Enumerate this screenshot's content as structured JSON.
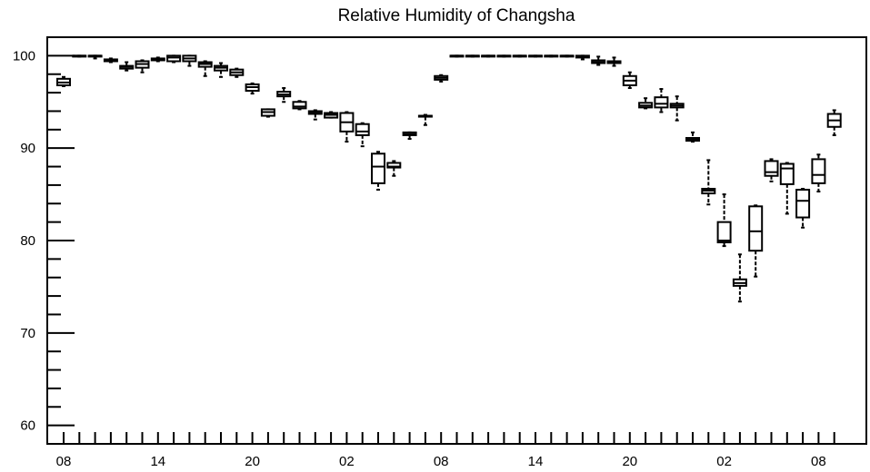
{
  "chart_data": {
    "type": "box",
    "title": "Relative Humidity of Changsha",
    "xlabel": "",
    "ylabel": "",
    "ylim": [
      58,
      102
    ],
    "y_ticks": [
      60,
      70,
      80,
      90,
      100
    ],
    "x_tick_labels": [
      {
        "label": "08",
        "index": 0
      },
      {
        "label": "14",
        "index": 6
      },
      {
        "label": "20",
        "index": 12
      },
      {
        "label": "02",
        "index": 18
      },
      {
        "label": "08",
        "index": 24
      },
      {
        "label": "14",
        "index": 30
      },
      {
        "label": "20",
        "index": 36
      },
      {
        "label": "02",
        "index": 42
      },
      {
        "label": "08",
        "index": 48
      }
    ],
    "grid": false,
    "boxes": [
      {
        "index": 0,
        "min": 96.7,
        "q1": 96.8,
        "median": 97.1,
        "q3": 97.5,
        "max": 97.7
      },
      {
        "index": 1,
        "min": 99.9,
        "q1": 99.9,
        "median": 100.0,
        "q3": 100.0,
        "max": 100.0
      },
      {
        "index": 2,
        "min": 99.7,
        "q1": 99.9,
        "median": 100.0,
        "q3": 100.0,
        "max": 100.0
      },
      {
        "index": 3,
        "min": 99.3,
        "q1": 99.4,
        "median": 99.5,
        "q3": 99.6,
        "max": 99.7
      },
      {
        "index": 4,
        "min": 98.4,
        "q1": 98.6,
        "median": 98.8,
        "q3": 98.9,
        "max": 99.3
      },
      {
        "index": 5,
        "min": 98.2,
        "q1": 98.7,
        "median": 99.1,
        "q3": 99.4,
        "max": 99.5
      },
      {
        "index": 6,
        "min": 99.4,
        "q1": 99.5,
        "median": 99.6,
        "q3": 99.7,
        "max": 99.8
      },
      {
        "index": 7,
        "min": 99.3,
        "q1": 99.4,
        "median": 99.8,
        "q3": 100.0,
        "max": 100.0
      },
      {
        "index": 8,
        "min": 98.9,
        "q1": 99.4,
        "median": 99.7,
        "q3": 100.0,
        "max": 100.0
      },
      {
        "index": 9,
        "min": 97.8,
        "q1": 98.8,
        "median": 99.1,
        "q3": 99.3,
        "max": 99.4
      },
      {
        "index": 10,
        "min": 97.7,
        "q1": 98.4,
        "median": 98.7,
        "q3": 98.9,
        "max": 99.2
      },
      {
        "index": 11,
        "min": 97.7,
        "q1": 97.9,
        "median": 98.2,
        "q3": 98.5,
        "max": 98.6
      },
      {
        "index": 12,
        "min": 95.9,
        "q1": 96.2,
        "median": 96.6,
        "q3": 96.9,
        "max": 97.0
      },
      {
        "index": 13,
        "min": 93.4,
        "q1": 93.5,
        "median": 93.9,
        "q3": 94.2,
        "max": 94.2
      },
      {
        "index": 14,
        "min": 95.0,
        "q1": 95.6,
        "median": 95.8,
        "q3": 96.1,
        "max": 96.5
      },
      {
        "index": 15,
        "min": 94.2,
        "q1": 94.3,
        "median": 94.5,
        "q3": 95.0,
        "max": 95.1
      },
      {
        "index": 16,
        "min": 93.1,
        "q1": 93.7,
        "median": 93.9,
        "q3": 94.0,
        "max": 94.1
      },
      {
        "index": 17,
        "min": 93.3,
        "q1": 93.3,
        "median": 93.6,
        "q3": 93.8,
        "max": 93.9
      },
      {
        "index": 18,
        "min": 90.7,
        "q1": 91.8,
        "median": 92.8,
        "q3": 93.8,
        "max": 93.9
      },
      {
        "index": 19,
        "min": 90.2,
        "q1": 91.4,
        "median": 91.8,
        "q3": 92.6,
        "max": 92.7
      },
      {
        "index": 20,
        "min": 85.5,
        "q1": 86.2,
        "median": 88.0,
        "q3": 89.4,
        "max": 89.6
      },
      {
        "index": 21,
        "min": 87.0,
        "q1": 87.9,
        "median": 88.0,
        "q3": 88.4,
        "max": 88.6
      },
      {
        "index": 22,
        "min": 91.0,
        "q1": 91.4,
        "median": 91.5,
        "q3": 91.7,
        "max": 91.7
      },
      {
        "index": 23,
        "min": 92.5,
        "q1": 93.4,
        "median": 93.5,
        "q3": 93.5,
        "max": 93.6
      },
      {
        "index": 24,
        "min": 97.2,
        "q1": 97.4,
        "median": 97.6,
        "q3": 97.8,
        "max": 97.9
      },
      {
        "index": 25,
        "min": 99.9,
        "q1": 99.9,
        "median": 100.0,
        "q3": 100.0,
        "max": 100.0
      },
      {
        "index": 26,
        "min": 99.9,
        "q1": 100.0,
        "median": 100.0,
        "q3": 100.0,
        "max": 100.0
      },
      {
        "index": 27,
        "min": 99.9,
        "q1": 100.0,
        "median": 100.0,
        "q3": 100.0,
        "max": 100.0
      },
      {
        "index": 28,
        "min": 99.9,
        "q1": 100.0,
        "median": 100.0,
        "q3": 100.0,
        "max": 100.0
      },
      {
        "index": 29,
        "min": 99.9,
        "q1": 100.0,
        "median": 100.0,
        "q3": 100.0,
        "max": 100.0
      },
      {
        "index": 30,
        "min": 99.9,
        "q1": 100.0,
        "median": 100.0,
        "q3": 100.0,
        "max": 100.0
      },
      {
        "index": 31,
        "min": 99.9,
        "q1": 100.0,
        "median": 100.0,
        "q3": 100.0,
        "max": 100.0
      },
      {
        "index": 32,
        "min": 99.9,
        "q1": 100.0,
        "median": 100.0,
        "q3": 100.0,
        "max": 100.0
      },
      {
        "index": 33,
        "min": 99.6,
        "q1": 99.8,
        "median": 99.9,
        "q3": 100.0,
        "max": 100.0
      },
      {
        "index": 34,
        "min": 99.0,
        "q1": 99.2,
        "median": 99.3,
        "q3": 99.5,
        "max": 99.9
      },
      {
        "index": 35,
        "min": 98.9,
        "q1": 99.2,
        "median": 99.3,
        "q3": 99.4,
        "max": 99.8
      },
      {
        "index": 36,
        "min": 96.5,
        "q1": 96.8,
        "median": 97.3,
        "q3": 97.8,
        "max": 98.2
      },
      {
        "index": 37,
        "min": 94.3,
        "q1": 94.4,
        "median": 94.6,
        "q3": 94.9,
        "max": 95.4
      },
      {
        "index": 38,
        "min": 93.9,
        "q1": 94.4,
        "median": 94.8,
        "q3": 95.5,
        "max": 96.4
      },
      {
        "index": 39,
        "min": 93.0,
        "q1": 94.4,
        "median": 94.6,
        "q3": 94.8,
        "max": 95.6
      },
      {
        "index": 40,
        "min": 90.7,
        "q1": 90.8,
        "median": 90.9,
        "q3": 91.1,
        "max": 91.7
      },
      {
        "index": 41,
        "min": 83.9,
        "q1": 85.1,
        "median": 85.4,
        "q3": 85.6,
        "max": 88.7
      },
      {
        "index": 42,
        "min": 79.4,
        "q1": 79.8,
        "median": 80.0,
        "q3": 82.0,
        "max": 85.0
      },
      {
        "index": 43,
        "min": 73.4,
        "q1": 75.1,
        "median": 75.4,
        "q3": 75.8,
        "max": 78.5
      },
      {
        "index": 44,
        "min": 76.1,
        "q1": 78.9,
        "median": 81.0,
        "q3": 83.7,
        "max": 83.8
      },
      {
        "index": 45,
        "min": 86.4,
        "q1": 87.0,
        "median": 87.4,
        "q3": 88.6,
        "max": 88.8
      },
      {
        "index": 46,
        "min": 82.9,
        "q1": 86.1,
        "median": 87.8,
        "q3": 88.3,
        "max": 88.4
      },
      {
        "index": 47,
        "min": 81.4,
        "q1": 82.5,
        "median": 84.3,
        "q3": 85.5,
        "max": 85.6
      },
      {
        "index": 48,
        "min": 85.3,
        "q1": 86.2,
        "median": 87.1,
        "q3": 88.8,
        "max": 89.3
      },
      {
        "index": 49,
        "min": 91.4,
        "q1": 92.3,
        "median": 93.0,
        "q3": 93.7,
        "max": 94.1
      }
    ]
  }
}
